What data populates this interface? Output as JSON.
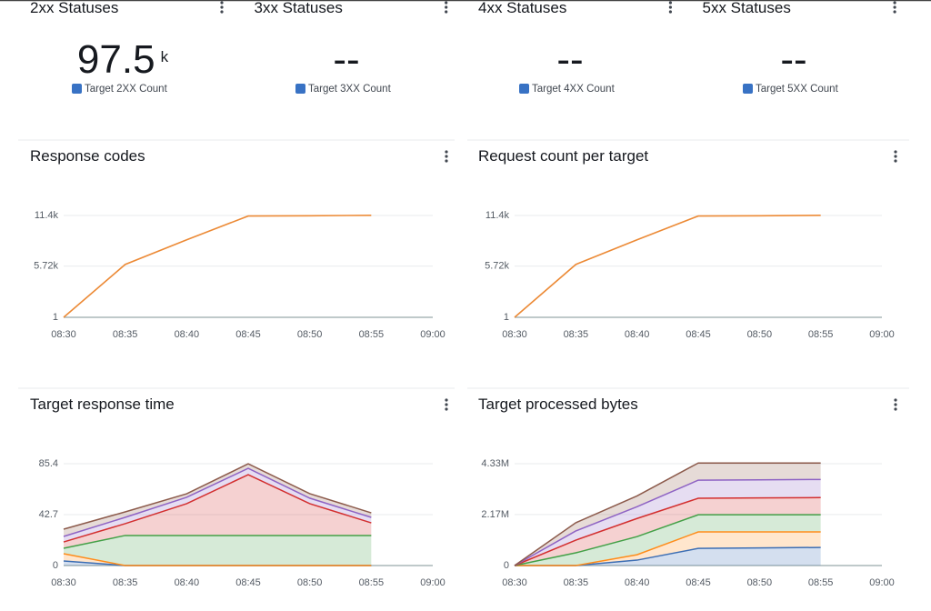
{
  "stats": [
    {
      "title": "2xx Statuses",
      "value": 97.5,
      "unit": "k",
      "legend": "Target 2XX Count"
    },
    {
      "title": "3xx Statuses",
      "value": "--",
      "legend": "Target 3XX Count"
    },
    {
      "title": "4xx Statuses",
      "value": "--",
      "legend": "Target 4XX Count"
    },
    {
      "title": "5xx Statuses",
      "value": "--",
      "legend": "Target 5XX Count"
    }
  ],
  "stat_color": "#3872c4",
  "chart_data": [
    {
      "type": "line",
      "title": "Response codes",
      "x": [
        "08:30",
        "08:35",
        "08:40",
        "08:45",
        "08:50",
        "08:55"
      ],
      "xticks": [
        "08:30",
        "08:35",
        "08:40",
        "08:45",
        "08:50",
        "08:55",
        "09:00"
      ],
      "ylim": [
        1,
        11440
      ],
      "yticks": [
        1,
        {
          "value": 5720,
          "label": "5.72k"
        },
        {
          "value": 11400,
          "label": "11.4k"
        }
      ],
      "grid": true,
      "series": [
        {
          "color": "#ec8a36",
          "values": [
            1,
            5920,
            8680,
            11340,
            11370,
            11420
          ]
        }
      ]
    },
    {
      "type": "line",
      "title": "Request count per target",
      "x": [
        "08:30",
        "08:35",
        "08:40",
        "08:45",
        "08:50",
        "08:55"
      ],
      "xticks": [
        "08:30",
        "08:35",
        "08:40",
        "08:45",
        "08:50",
        "08:55",
        "09:00"
      ],
      "ylim": [
        1,
        11440
      ],
      "yticks": [
        1,
        {
          "value": 5720,
          "label": "5.72k"
        },
        {
          "value": 11400,
          "label": "11.4k"
        }
      ],
      "grid": true,
      "series": [
        {
          "color": "#ec8a36",
          "values": [
            1,
            5920,
            8680,
            11340,
            11370,
            11420
          ]
        }
      ]
    },
    {
      "type": "stacked_area",
      "title": "Target response time",
      "x": [
        "08:30",
        "08:35",
        "08:40",
        "08:45",
        "08:50",
        "08:55"
      ],
      "xticks": [
        "08:30",
        "08:35",
        "08:40",
        "08:45",
        "08:50",
        "08:55",
        "09:00"
      ],
      "ylim": [
        0,
        85.4
      ],
      "yticks": [
        0,
        42.7,
        85.4
      ],
      "grid": true,
      "series": [
        {
          "color": "#3c6eb4",
          "values": [
            3.8,
            0,
            0,
            0,
            0,
            0
          ]
        },
        {
          "color": "#ff8c1a",
          "values": [
            6.1,
            0,
            0,
            0,
            0,
            0
          ]
        },
        {
          "color": "#43a047",
          "values": [
            4.6,
            25.2,
            25.2,
            25.2,
            25.2,
            25.2
          ]
        },
        {
          "color": "#d32f2f",
          "values": [
            5.3,
            9.9,
            26.7,
            51.0,
            26.7,
            10.6
          ]
        },
        {
          "color": "#8e63c4",
          "values": [
            4.6,
            5.3,
            5.3,
            5.3,
            4.6,
            4.6
          ]
        },
        {
          "color": "#8c5a4b",
          "values": [
            6.1,
            4.6,
            3.0,
            3.8,
            3.8,
            3.8
          ]
        }
      ]
    },
    {
      "type": "stacked_area",
      "title": "Target processed bytes",
      "x": [
        "08:30",
        "08:35",
        "08:40",
        "08:45",
        "08:50",
        "08:55"
      ],
      "xticks": [
        "08:30",
        "08:35",
        "08:40",
        "08:45",
        "08:50",
        "08:55",
        "09:00"
      ],
      "ylim": [
        0,
        4330000
      ],
      "yticks": [
        0,
        {
          "value": 2170000,
          "label": "2.17M"
        },
        {
          "value": 4330000,
          "label": "4.33M"
        }
      ],
      "grid": true,
      "series": [
        {
          "color": "#3c6eb4",
          "values": [
            0,
            0,
            230000,
            730000,
            750000,
            770000
          ]
        },
        {
          "color": "#ff8c1a",
          "values": [
            0,
            0,
            230000,
            700000,
            680000,
            660000
          ]
        },
        {
          "color": "#43a047",
          "values": [
            0,
            540000,
            770000,
            730000,
            730000,
            730000
          ]
        },
        {
          "color": "#d32f2f",
          "values": [
            0,
            540000,
            770000,
            700000,
            715000,
            730000
          ]
        },
        {
          "color": "#8e63c4",
          "values": [
            0,
            390000,
            500000,
            770000,
            770000,
            770000
          ]
        },
        {
          "color": "#8c5a4b",
          "values": [
            0,
            350000,
            460000,
            730000,
            715000,
            700000
          ]
        }
      ]
    }
  ]
}
